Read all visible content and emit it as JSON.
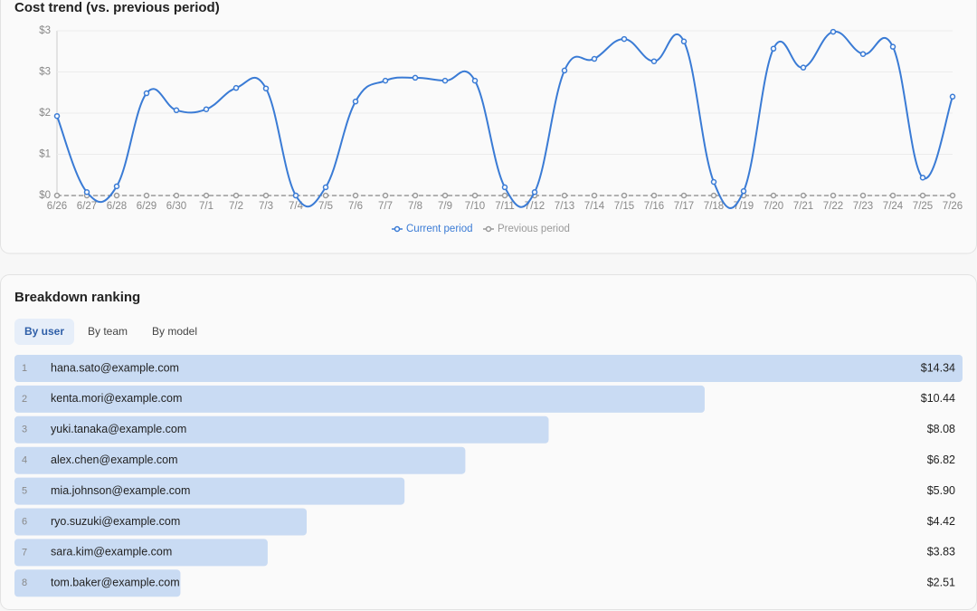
{
  "chart_data": {
    "type": "line",
    "title": "Cost trend (vs. previous period)",
    "categories": [
      "6/26",
      "6/27",
      "6/28",
      "6/29",
      "6/30",
      "7/1",
      "7/2",
      "7/3",
      "7/4",
      "7/5",
      "7/6",
      "7/7",
      "7/8",
      "7/9",
      "7/10",
      "7/11",
      "7/12",
      "7/13",
      "7/14",
      "7/15",
      "7/16",
      "7/17",
      "7/18",
      "7/19",
      "7/20",
      "7/21",
      "7/22",
      "7/23",
      "7/24",
      "7/25",
      "7/26"
    ],
    "series": [
      {
        "name": "Current period",
        "color": "#3a7bd5",
        "values": [
          1.64,
          0.07,
          0.19,
          2.11,
          1.76,
          1.78,
          2.22,
          2.21,
          0.0,
          0.17,
          1.94,
          2.37,
          2.43,
          2.37,
          2.37,
          0.17,
          0.07,
          2.58,
          2.82,
          3.23,
          2.77,
          3.18,
          0.28,
          0.09,
          3.03,
          2.64,
          3.38,
          2.92,
          3.07,
          0.37,
          2.04
        ]
      },
      {
        "name": "Previous period",
        "color": "#999999",
        "values": [
          0,
          0,
          0,
          0,
          0,
          0,
          0,
          0,
          0,
          0,
          0,
          0,
          0,
          0,
          0,
          0,
          0,
          0,
          0,
          0,
          0,
          0,
          0,
          0,
          0,
          0,
          0,
          0,
          0,
          0,
          0
        ]
      }
    ],
    "ylim": [
      0,
      3.4
    ],
    "yticks": [
      {
        "value": 0,
        "label": "$0"
      },
      {
        "value": 0.85,
        "label": "$1"
      },
      {
        "value": 1.7,
        "label": "$2"
      },
      {
        "value": 2.55,
        "label": "$3"
      },
      {
        "value": 3.4,
        "label": "$3"
      }
    ],
    "grid": true
  },
  "ranking": {
    "title": "Breakdown ranking",
    "tabs": [
      "By user",
      "By team",
      "By model"
    ],
    "ranks": [
      1,
      2,
      3,
      4,
      5,
      6,
      7,
      8
    ],
    "names": [
      "hana.sato@example.com",
      "kenta.mori@example.com",
      "yuki.tanaka@example.com",
      "alex.chen@example.com",
      "mia.johnson@example.com",
      "ryo.suzuki@example.com",
      "sara.kim@example.com",
      "tom.baker@example.com"
    ],
    "values": [
      14.34,
      10.44,
      8.08,
      6.82,
      5.9,
      4.42,
      3.83,
      2.51
    ],
    "value_labels": [
      "$14.34",
      "$10.44",
      "$8.08",
      "$6.82",
      "$5.90",
      "$4.42",
      "$3.83",
      "$2.51"
    ],
    "color": "#c9dbf3"
  }
}
